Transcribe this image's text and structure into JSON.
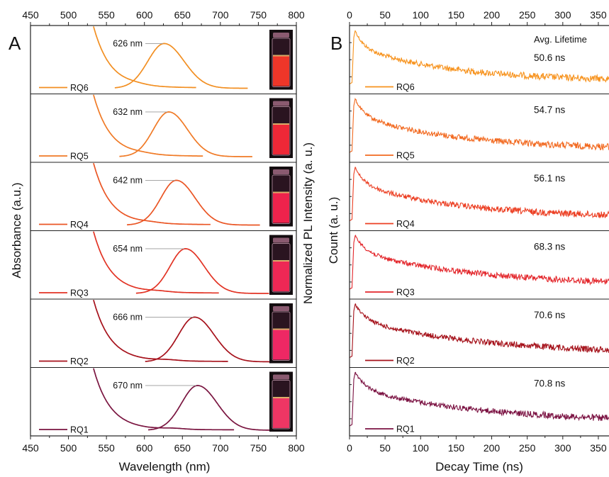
{
  "panels": {
    "A": {
      "label": "A",
      "xlabel": "Wavelength (nm)",
      "ylabel_left": "Absorbance (a.u.)",
      "ylabel_right": "Normalized PL Intensity (a. u.)"
    },
    "B": {
      "label": "B",
      "xlabel": "Decay Time (ns)",
      "ylabel": "Count (a. u.)",
      "lifetime_header": "Avg. Lifetime"
    }
  },
  "chart_data": [
    {
      "type": "line",
      "panel": "A",
      "xlabel": "Wavelength (nm)",
      "ylabel": "Absorbance (a.u.)",
      "xlim": [
        450,
        800
      ],
      "xticks": [
        450,
        500,
        550,
        600,
        650,
        700,
        750,
        800
      ],
      "series": [
        {
          "name": "RQ6",
          "peak_label": "626 nm",
          "pl_peak_nm": 626,
          "pl_fwhm_nm": 55,
          "shoulder_nm": 588,
          "color": "#f28f22",
          "vial_glow": "#ff3a2a"
        },
        {
          "name": "RQ5",
          "peak_label": "632 nm",
          "pl_peak_nm": 632,
          "pl_fwhm_nm": 52,
          "shoulder_nm": 597,
          "color": "#f07a26",
          "vial_glow": "#ff2a3a"
        },
        {
          "name": "RQ4",
          "peak_label": "642 nm",
          "pl_peak_nm": 642,
          "pl_fwhm_nm": 52,
          "shoulder_nm": 607,
          "color": "#ea5524",
          "vial_glow": "#ff2550"
        },
        {
          "name": "RQ3",
          "peak_label": "654 nm",
          "pl_peak_nm": 654,
          "pl_fwhm_nm": 52,
          "shoulder_nm": 618,
          "color": "#e23324",
          "vial_glow": "#ff2a5a"
        },
        {
          "name": "RQ2",
          "peak_label": "666 nm",
          "pl_peak_nm": 666,
          "pl_fwhm_nm": 54,
          "shoulder_nm": 630,
          "color": "#a6111b",
          "vial_glow": "#ff2a6a"
        },
        {
          "name": "RQ1",
          "peak_label": "670 nm",
          "pl_peak_nm": 670,
          "pl_fwhm_nm": 54,
          "shoulder_nm": 638,
          "color": "#7a1540",
          "vial_glow": "#ff3a6a"
        }
      ]
    },
    {
      "type": "line",
      "panel": "B",
      "xlabel": "Decay Time (ns)",
      "ylabel": "Count (a. u.)",
      "xlim": [
        0,
        365
      ],
      "xticks": [
        0,
        50,
        100,
        150,
        200,
        250,
        300,
        350
      ],
      "series": [
        {
          "name": "RQ6",
          "lifetime": "50.6 ns",
          "tau_ns": 50.6,
          "color": "#f7931e"
        },
        {
          "name": "RQ5",
          "lifetime": "54.7 ns",
          "tau_ns": 54.7,
          "color": "#f26a21"
        },
        {
          "name": "RQ4",
          "lifetime": "56.1 ns",
          "tau_ns": 56.1,
          "color": "#ec3f23"
        },
        {
          "name": "RQ3",
          "lifetime": "68.3 ns",
          "tau_ns": 68.3,
          "color": "#e3262b"
        },
        {
          "name": "RQ2",
          "lifetime": "70.6 ns",
          "tau_ns": 70.6,
          "color": "#a5111a"
        },
        {
          "name": "RQ1",
          "lifetime": "70.8 ns",
          "tau_ns": 70.8,
          "color": "#7b1242"
        }
      ]
    }
  ]
}
